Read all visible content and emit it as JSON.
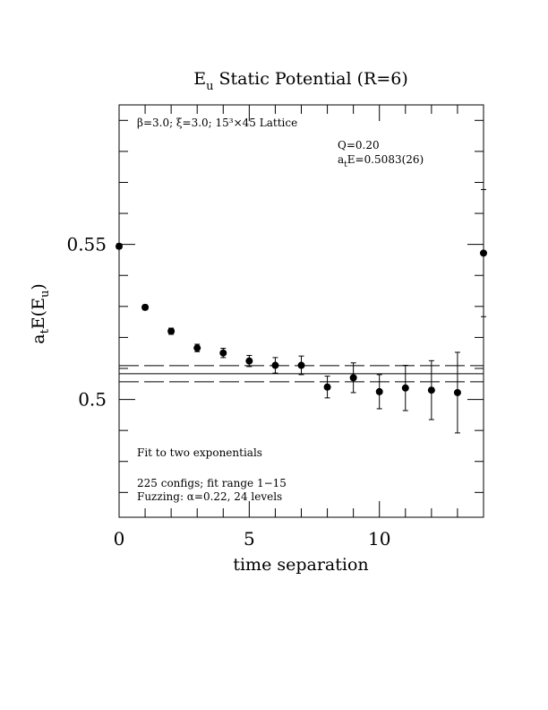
{
  "chart_data": {
    "type": "scatter",
    "title": "E_u Static Potential (R=6)",
    "title_main": "E",
    "title_sub": "u",
    "title_rest": " Static Potential (R=6)",
    "xlabel": "time separation",
    "ylabel": "a_tE(E_u)",
    "xlim": [
      0,
      14
    ],
    "ylim": [
      0.462,
      0.595
    ],
    "x_ticks": [
      0,
      5,
      10
    ],
    "x_tick_labels": [
      "0",
      "5",
      "10"
    ],
    "y_ticks": [
      0.5,
      0.55
    ],
    "y_tick_labels": [
      "0.5",
      "0.55"
    ],
    "grid": false,
    "annotations": {
      "lattice": "β=3.0; ξ=3.0; 15³×45 Lattice",
      "q": "Q=0.20",
      "fit_result": "a_tE=0.5083(26)",
      "fit_type": "Fit to two exponentials",
      "configs": "225 configs; fit range 1−15",
      "fuzzing": "Fuzzing: α=0.22, 24 levels"
    },
    "fit": {
      "central": 0.5083,
      "error": 0.0026,
      "x_range": [
        0,
        14
      ]
    },
    "series": [
      {
        "x": [
          0,
          1,
          2,
          3,
          4,
          5,
          6,
          7,
          8,
          9,
          10,
          11,
          12,
          13,
          14
        ],
        "y": [
          0.5494,
          0.5297,
          0.522,
          0.5166,
          0.515,
          0.5124,
          0.511,
          0.511,
          0.504,
          0.507,
          0.5025,
          0.5037,
          0.503,
          0.5022,
          0.5472
        ],
        "err": [
          0.0008,
          0.0008,
          0.001,
          0.0012,
          0.0015,
          0.0018,
          0.0025,
          0.003,
          0.0035,
          0.0048,
          0.0055,
          0.0073,
          0.0095,
          0.013,
          0.0205
        ]
      }
    ]
  }
}
